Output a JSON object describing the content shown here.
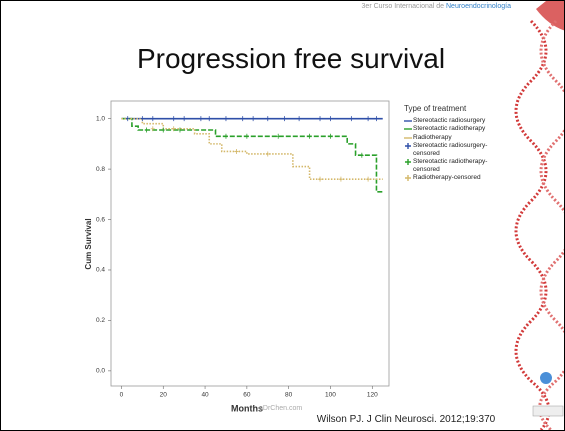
{
  "slide": {
    "header_prefix": "3er",
    "header_text": "Curso Internacional de",
    "header_highlight": "Neuroendocrinología",
    "title": "Progression free survival",
    "citation": "Wilson PJ. J Clin Neurosci. 2012;19:370",
    "watermark": "oDrChen.com"
  },
  "chart_data": {
    "type": "kaplan-meier",
    "x_label": "Months",
    "y_label": "Cum Survival",
    "legend_title": "Type of treatment",
    "xlim": [
      -5,
      128
    ],
    "ylim": [
      -0.06,
      1.07
    ],
    "xticks": [
      0,
      20,
      40,
      60,
      80,
      100,
      120
    ],
    "yticks": [
      {
        "value": 0,
        "label": "0.0"
      },
      0.2,
      0.4,
      0.6,
      0.8,
      {
        "value": 1,
        "label": "1.0"
      }
    ],
    "series": [
      {
        "name": "Stereotactic radiosurgery",
        "color": "#2f4fa8",
        "style": "solid",
        "x": [
          0,
          125
        ],
        "values": [
          1,
          1
        ]
      },
      {
        "name": "Stereotactic radiotherapy",
        "color": "#2aa02a",
        "style": "dashed",
        "x": [
          0,
          5,
          8,
          45,
          108,
          112,
          122,
          125
        ],
        "values": [
          1,
          0.97,
          0.955,
          0.93,
          0.9,
          0.855,
          0.71,
          0.71
        ]
      },
      {
        "name": "Radiotherapy",
        "color": "#d4b86a",
        "style": "dotted",
        "x": [
          0,
          10,
          20,
          35,
          42,
          48,
          60,
          82,
          90,
          125
        ],
        "values": [
          1,
          0.98,
          0.96,
          0.94,
          0.9,
          0.87,
          0.86,
          0.81,
          0.76,
          0.76
        ]
      },
      {
        "name": "Stereotactic radiosurgery-censored",
        "color": "#2f4fa8",
        "style": "censored",
        "x": [
          3,
          10,
          15,
          25,
          30,
          38,
          42,
          50,
          58,
          63,
          70,
          78,
          85,
          95,
          100,
          110,
          118,
          122
        ],
        "values": [
          1,
          1,
          1,
          1,
          1,
          1,
          1,
          1,
          1,
          1,
          1,
          1,
          1,
          1,
          1,
          1,
          1,
          1
        ]
      },
      {
        "name": "Stereotactic radiotherapy-censored",
        "color": "#2aa02a",
        "style": "censored",
        "x": [
          12,
          20,
          28,
          50,
          60,
          75,
          90,
          100,
          115
        ],
        "values": [
          0.955,
          0.955,
          0.955,
          0.93,
          0.93,
          0.93,
          0.93,
          0.93,
          0.855
        ]
      },
      {
        "name": "Radiotherapy-censored",
        "color": "#d4b86a",
        "style": "censored",
        "x": [
          15,
          25,
          55,
          70,
          95,
          105,
          118
        ],
        "values": [
          0.96,
          0.96,
          0.87,
          0.86,
          0.76,
          0.76,
          0.76
        ]
      }
    ]
  }
}
